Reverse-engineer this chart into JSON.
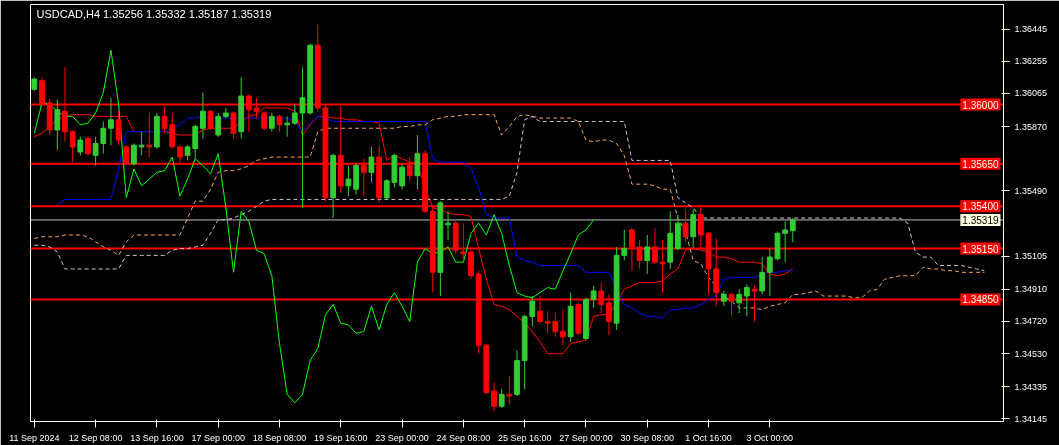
{
  "chart_data": {
    "type": "candlestick",
    "title": "USDCAD,H4  1.35256 1.35332 1.35187 1.35319",
    "categories": [
      "11 Sep 2024",
      null,
      null,
      null,
      null,
      null,
      null,
      null,
      "12 Sep 08:00",
      null,
      null,
      null,
      null,
      null,
      null,
      null,
      "13 Sep 16:00",
      null,
      null,
      null,
      null,
      null,
      null,
      null,
      "17 Sep 00:00",
      null,
      null,
      null,
      null,
      null,
      null,
      null,
      "18 Sep 08:00",
      null,
      null,
      null,
      null,
      null,
      null,
      null,
      "19 Sep 16:00",
      null,
      null,
      null,
      null,
      null,
      null,
      null,
      "23 Sep 00:00",
      null,
      null,
      null,
      null,
      null,
      null,
      null,
      "24 Sep 08:00",
      null,
      null,
      null,
      null,
      null,
      null,
      null,
      "25 Sep 16:00",
      null,
      null,
      null,
      null,
      null,
      null,
      null,
      "27 Sep 00:00",
      null,
      null,
      null,
      null,
      null,
      null,
      null,
      "30 Sep 08:00",
      null,
      null,
      null,
      null,
      null,
      null,
      null,
      "1 Oct 16:00",
      null,
      null,
      null,
      null,
      null,
      null,
      null,
      "3 Oct 00:00",
      null,
      null,
      null,
      null,
      null,
      null,
      null,
      null,
      null,
      null,
      null,
      null,
      null,
      null,
      null,
      null,
      null,
      null,
      null,
      null,
      null,
      null,
      null,
      null,
      null,
      null,
      null,
      null,
      null,
      null
    ],
    "ohlc": [
      [
        1.3609,
        1.3616,
        1.3608,
        1.3615
      ],
      [
        1.3614,
        1.3616,
        1.36,
        1.36
      ],
      [
        1.3601,
        1.3603,
        1.3582,
        1.3585
      ],
      [
        1.3585,
        1.3603,
        1.3573,
        1.3597
      ],
      [
        1.3596,
        1.3622,
        1.3578,
        1.3584
      ],
      [
        1.3584,
        1.3585,
        1.3566,
        1.3575
      ],
      [
        1.3572,
        1.3581,
        1.357,
        1.3579
      ],
      [
        1.358,
        1.3581,
        1.357,
        1.3571
      ],
      [
        1.357,
        1.3581,
        1.3564,
        1.3577
      ],
      [
        1.3577,
        1.359,
        1.3571,
        1.3586
      ],
      [
        1.3586,
        1.3604,
        1.3576,
        1.3591
      ],
      [
        1.3591,
        1.3596,
        1.3576,
        1.3579
      ],
      [
        1.3575,
        1.3576,
        1.3565,
        1.3565
      ],
      [
        1.3565,
        1.3577,
        1.3564,
        1.3576
      ],
      [
        1.3575,
        1.3584,
        1.357,
        1.3576
      ],
      [
        1.3576,
        1.3595,
        1.3569,
        1.3575
      ],
      [
        1.3575,
        1.3595,
        1.3574,
        1.3593
      ],
      [
        1.3593,
        1.3599,
        1.3583,
        1.3586
      ],
      [
        1.3588,
        1.3595,
        1.3574,
        1.3575
      ],
      [
        1.3575,
        1.3576,
        1.3566,
        1.3569
      ],
      [
        1.357,
        1.3576,
        1.3567,
        1.3575
      ],
      [
        1.3574,
        1.3588,
        1.3568,
        1.3587
      ],
      [
        1.3586,
        1.3607,
        1.358,
        1.3596
      ],
      [
        1.3596,
        1.3597,
        1.3585,
        1.3586
      ],
      [
        1.3582,
        1.3595,
        1.3581,
        1.3593
      ],
      [
        1.3593,
        1.3598,
        1.3592,
        1.3595
      ],
      [
        1.3595,
        1.3596,
        1.358,
        1.3583
      ],
      [
        1.3584,
        1.3616,
        1.358,
        1.3605
      ],
      [
        1.3605,
        1.3606,
        1.3584,
        1.3597
      ],
      [
        1.3598,
        1.3604,
        1.3592,
        1.3596
      ],
      [
        1.3595,
        1.3596,
        1.3585,
        1.3586
      ],
      [
        1.3586,
        1.3595,
        1.3584,
        1.3593
      ],
      [
        1.3593,
        1.3594,
        1.3584,
        1.3588
      ],
      [
        1.3588,
        1.3593,
        1.3581,
        1.3589
      ],
      [
        1.3589,
        1.36,
        1.3588,
        1.3595
      ],
      [
        1.3595,
        1.3622,
        1.3539,
        1.3604
      ],
      [
        1.3595,
        1.3636,
        1.3594,
        1.3635
      ],
      [
        1.3635,
        1.3647,
        1.3596,
        1.3598
      ],
      [
        1.3598,
        1.36,
        1.3543,
        1.3545
      ],
      [
        1.3545,
        1.3571,
        1.3533,
        1.357
      ],
      [
        1.357,
        1.3599,
        1.3548,
        1.3552
      ],
      [
        1.3552,
        1.3564,
        1.3546,
        1.3556
      ],
      [
        1.355,
        1.3565,
        1.3547,
        1.3564
      ],
      [
        1.3564,
        1.3568,
        1.3546,
        1.356
      ],
      [
        1.356,
        1.3575,
        1.3554,
        1.3569
      ],
      [
        1.3569,
        1.3576,
        1.3542,
        1.3545
      ],
      [
        1.3545,
        1.3556,
        1.3544,
        1.3555
      ],
      [
        1.3554,
        1.3571,
        1.3551,
        1.357
      ],
      [
        1.3552,
        1.3565,
        1.355,
        1.3563
      ],
      [
        1.3564,
        1.3569,
        1.3555,
        1.3558
      ],
      [
        1.3558,
        1.3582,
        1.355,
        1.3571
      ],
      [
        1.3571,
        1.3573,
        1.3536,
        1.3537
      ],
      [
        1.3537,
        1.3541,
        1.3489,
        1.3501
      ],
      [
        1.3501,
        1.3543,
        1.3487,
        1.3542
      ],
      [
        1.3529,
        1.3537,
        1.352,
        1.353
      ],
      [
        1.353,
        1.3531,
        1.3512,
        1.3514
      ],
      [
        1.3513,
        1.353,
        1.3508,
        1.3512
      ],
      [
        1.3513,
        1.3514,
        1.3497,
        1.3499
      ],
      [
        1.35,
        1.3502,
        1.3453,
        1.3458
      ],
      [
        1.3458,
        1.3459,
        1.3429,
        1.343
      ],
      [
        1.3431,
        1.3436,
        1.3419,
        1.3422
      ],
      [
        1.3422,
        1.3432,
        1.3421,
        1.3429
      ],
      [
        1.3429,
        1.344,
        1.3423,
        1.3428
      ],
      [
        1.3429,
        1.3455,
        1.3428,
        1.3449
      ],
      [
        1.3449,
        1.3476,
        1.3432,
        1.3475
      ],
      [
        1.3475,
        1.3487,
        1.3469,
        1.3484
      ],
      [
        1.3478,
        1.3487,
        1.3471,
        1.3472
      ],
      [
        1.3472,
        1.3478,
        1.3465,
        1.3471
      ],
      [
        1.3472,
        1.3477,
        1.3463,
        1.3466
      ],
      [
        1.3466,
        1.3479,
        1.3458,
        1.3463
      ],
      [
        1.3463,
        1.3489,
        1.346,
        1.3481
      ],
      [
        1.3482,
        1.3483,
        1.3464,
        1.3465
      ],
      [
        1.3462,
        1.3486,
        1.3461,
        1.3485
      ],
      [
        1.3485,
        1.3493,
        1.348,
        1.349
      ],
      [
        1.349,
        1.3495,
        1.3477,
        1.3482
      ],
      [
        1.3483,
        1.3488,
        1.3464,
        1.3472
      ],
      [
        1.3471,
        1.3516,
        1.3467,
        1.3511
      ],
      [
        1.3511,
        1.3526,
        1.3508,
        1.3515
      ],
      [
        1.3526,
        1.3527,
        1.3502,
        1.3516
      ],
      [
        1.3516,
        1.352,
        1.3503,
        1.3508
      ],
      [
        1.3508,
        1.3523,
        1.35,
        1.3516
      ],
      [
        1.3516,
        1.3527,
        1.3506,
        1.3507
      ],
      [
        1.3507,
        1.352,
        1.3489,
        1.3506
      ],
      [
        1.3507,
        1.3537,
        1.3503,
        1.3524
      ],
      [
        1.3515,
        1.3535,
        1.3514,
        1.353
      ],
      [
        1.353,
        1.3538,
        1.3519,
        1.3522
      ],
      [
        1.3522,
        1.3538,
        1.3515,
        1.3535
      ],
      [
        1.3535,
        1.354,
        1.3516,
        1.3523
      ],
      [
        1.3524,
        1.3525,
        1.3488,
        1.3503
      ],
      [
        1.3503,
        1.3521,
        1.3481,
        1.3489
      ],
      [
        1.3484,
        1.349,
        1.3481,
        1.3488
      ],
      [
        1.3488,
        1.3489,
        1.3476,
        1.3484
      ],
      [
        1.3483,
        1.3491,
        1.3477,
        1.3488
      ],
      [
        1.3487,
        1.3494,
        1.3475,
        1.3492
      ],
      [
        1.3491,
        1.3493,
        1.3472,
        1.349
      ],
      [
        1.349,
        1.351,
        1.3488,
        1.3501
      ],
      [
        1.3501,
        1.3515,
        1.3487,
        1.351
      ],
      [
        1.3509,
        1.3525,
        1.3508,
        1.3524
      ],
      [
        1.3524,
        1.3531,
        1.3507,
        1.3526
      ],
      [
        1.35256,
        1.35332,
        1.35187,
        1.35319
      ],
      null,
      null,
      null,
      null,
      null,
      null,
      null,
      null,
      null,
      null,
      null,
      null,
      null,
      null,
      null,
      null,
      null,
      null,
      null,
      null,
      null,
      null,
      null,
      null,
      null,
      null,
      null
    ],
    "colors": [
      "#32cd32",
      "#ff0000",
      "#ff0000",
      "#32cd32",
      "#ff0000",
      "#ff0000",
      "#32cd32",
      "#ff0000",
      "#32cd32",
      "#32cd32",
      "#32cd32",
      "#ff0000",
      "#ff0000",
      "#32cd32",
      "#32cd32",
      "#ff0000",
      "#32cd32",
      "#ff0000",
      "#ff0000",
      "#ff0000",
      "#32cd32",
      "#32cd32",
      "#32cd32",
      "#ff0000",
      "#32cd32",
      "#32cd32",
      "#ff0000",
      "#32cd32",
      "#ff0000",
      "#ff0000",
      "#ff0000",
      "#32cd32",
      "#ff0000",
      "#32cd32",
      "#32cd32",
      "#32cd32",
      "#32cd32",
      "#ff0000",
      "#ff0000",
      "#32cd32",
      "#ff0000",
      "#32cd32",
      "#32cd32",
      "#ff0000",
      "#32cd32",
      "#ff0000",
      "#32cd32",
      "#32cd32",
      "#32cd32",
      "#ff0000",
      "#32cd32",
      "#ff0000",
      "#ff0000",
      "#32cd32",
      "#32cd32",
      "#ff0000",
      "#ff0000",
      "#ff0000",
      "#ff0000",
      "#ff0000",
      "#ff0000",
      "#32cd32",
      "#ff0000",
      "#32cd32",
      "#32cd32",
      "#32cd32",
      "#ff0000",
      "#ff0000",
      "#ff0000",
      "#ff0000",
      "#32cd32",
      "#ff0000",
      "#32cd32",
      "#32cd32",
      "#ff0000",
      "#ff0000",
      "#32cd32",
      "#32cd32",
      "#ff0000",
      "#ff0000",
      "#32cd32",
      "#ff0000",
      "#ff0000",
      "#32cd32",
      "#32cd32",
      "#ff0000",
      "#32cd32",
      "#ff0000",
      "#ff0000",
      "#ff0000",
      "#32cd32",
      "#ff0000",
      "#32cd32",
      "#32cd32",
      "#ff0000",
      "#32cd32",
      "#32cd32",
      "#32cd32",
      "#32cd32",
      "#32cd32",
      null,
      null,
      null,
      null,
      null,
      null,
      null,
      null,
      null,
      null,
      null,
      null,
      null,
      null,
      null,
      null,
      null,
      null,
      null,
      null,
      null,
      null,
      null,
      null,
      null,
      null,
      null
    ],
    "series": [
      {
        "type": "line",
        "color": "#ff0000",
        "line_style": "solid",
        "values": [
          1.3581,
          1.3583,
          1.3587,
          1.3591,
          1.3593,
          1.3594,
          1.3594,
          1.3594,
          1.3593,
          1.3593,
          1.3593,
          1.3593,
          1.3593,
          1.3584,
          null,
          1.3584,
          null,
          1.3584,
          1.3583,
          1.3582,
          1.3582,
          1.3582,
          1.3585,
          1.3586,
          1.3586,
          1.3586,
          1.3586,
          1.359,
          1.3593,
          1.3594,
          1.3598,
          1.3598,
          1.3598,
          1.3598,
          1.3596,
          1.3582,
          1.3588,
          1.3593,
          1.3593,
          1.3592,
          1.3592,
          1.3591,
          1.3591,
          1.359,
          1.359,
          1.3589,
          1.3567,
          1.357,
          1.3568,
          1.3566,
          1.3565,
          1.3551,
          1.3539,
          1.3538,
          1.3536,
          1.3535,
          1.3535,
          1.3534,
          1.3515,
          1.3497,
          1.3482,
          1.3481,
          1.3479,
          1.3475,
          1.3471,
          1.3466,
          1.346,
          1.3453,
          1.3453,
          1.3453,
          1.3459,
          1.346,
          1.3461,
          1.3475,
          1.3476,
          1.3476,
          1.3483,
          1.3491,
          1.3493,
          1.3495,
          1.3495,
          1.3495,
          1.3496,
          1.35,
          1.3503,
          1.3514,
          1.3515,
          1.3514,
          1.3513,
          1.351,
          1.351,
          1.3509,
          1.3507,
          1.3507,
          1.3507,
          1.3506,
          1.35,
          1.3499,
          1.35,
          1.3503,
          null,
          null,
          null,
          null,
          null,
          null,
          null,
          null,
          null,
          null,
          null,
          null,
          null,
          null,
          null,
          null,
          null,
          null,
          null,
          null,
          null,
          null,
          null,
          null,
          null,
          null,
          null
        ]
      },
      {
        "type": "line",
        "color": "#0000ff",
        "line_style": "solid",
        "values": [
          null,
          null,
          null,
          1.3541,
          1.3544,
          1.3544,
          1.3544,
          1.3544,
          1.3544,
          1.3544,
          1.3544,
          1.3562,
          1.3584,
          1.3584,
          1.3584,
          1.3584,
          1.3584,
          1.3584,
          1.3586,
          1.3588,
          1.3592,
          1.3592,
          1.3593,
          1.3592,
          1.3592,
          1.3592,
          1.3592,
          1.3592,
          1.3592,
          1.3592,
          1.3592,
          1.3592,
          1.3592,
          1.3592,
          1.359,
          1.3584,
          1.3589,
          1.3593,
          1.3592,
          1.359,
          1.359,
          1.359,
          1.359,
          1.359,
          1.359,
          1.359,
          1.359,
          1.359,
          1.359,
          1.359,
          1.359,
          1.359,
          1.3568,
          1.3566,
          1.3566,
          1.3566,
          1.3566,
          1.3562,
          1.3551,
          1.3535,
          1.3533,
          1.3533,
          1.3533,
          1.351,
          1.3508,
          1.3507,
          1.3505,
          1.3505,
          1.3505,
          1.3505,
          1.3505,
          1.3505,
          1.3501,
          1.3501,
          1.3501,
          1.3501,
          null,
          1.3482,
          1.348,
          1.3477,
          1.3475,
          1.3475,
          1.3474,
          1.3479,
          1.3479,
          1.348,
          1.348,
          1.3482,
          1.3485,
          1.3487,
          1.3497,
          1.3498,
          1.3498,
          1.3498,
          1.3498,
          1.35,
          1.3501,
          1.3501,
          1.3502,
          1.3502,
          null,
          null,
          null,
          null,
          null,
          null,
          null,
          null,
          null,
          null,
          null,
          null,
          null,
          null,
          null,
          null,
          null,
          null,
          null,
          null,
          null,
          null,
          null,
          null,
          null,
          null,
          null
        ]
      },
      {
        "type": "line",
        "color": "#00ff00",
        "line_style": "solid",
        "values": [
          1.3583,
          1.3601,
          1.36,
          1.3596,
          1.3593,
          1.3593,
          1.3588,
          1.3589,
          1.3595,
          1.3607,
          1.3632,
          1.36,
          1.3545,
          1.3562,
          1.3552,
          1.3556,
          1.356,
          1.3561,
          1.3569,
          1.3546,
          1.3556,
          1.3568,
          1.3564,
          1.3559,
          1.3571,
          1.3539,
          1.3501,
          1.3537,
          1.3531,
          1.3514,
          1.3512,
          1.3499,
          1.3459,
          1.3429,
          1.3424,
          1.3429,
          1.3449,
          1.3456,
          1.3476,
          1.3482,
          1.3471,
          1.347,
          1.3465,
          1.3466,
          1.3481,
          1.3467,
          1.3482,
          1.3489,
          1.3481,
          1.3472,
          1.3507,
          1.3515,
          1.3512,
          1.3513,
          1.3516,
          1.3507,
          1.3507,
          1.3524,
          1.353,
          1.3523,
          1.3535,
          1.3524,
          1.3505,
          1.3489,
          1.3487,
          1.3486,
          1.3489,
          1.3492,
          1.3491,
          1.3502,
          1.3512,
          1.3523,
          1.3526,
          1.3532,
          null,
          null,
          null,
          null,
          null,
          null,
          null,
          null,
          null,
          null,
          null,
          null,
          null,
          null,
          null,
          null,
          null,
          null,
          null,
          null,
          null,
          null,
          null,
          null,
          null,
          null,
          null,
          null,
          null,
          null,
          null,
          null,
          null,
          null,
          null,
          null,
          null,
          null,
          null,
          null,
          null,
          null,
          null,
          null,
          null,
          null,
          null,
          null,
          null,
          null,
          null,
          null,
          null
        ]
      },
      {
        "type": "line",
        "color": "#f4a460",
        "line_style": "dashed",
        "values": [
          1.3521,
          1.3522,
          1.3522,
          1.3522,
          1.3523,
          1.3523,
          1.3523,
          1.3522,
          1.3519,
          1.3516,
          1.3514,
          1.3511,
          1.3519,
          1.3523,
          1.3523,
          1.3523,
          1.3523,
          1.3523,
          1.3523,
          1.3523,
          1.3533,
          1.3543,
          1.3543,
          1.355,
          1.356,
          1.3561,
          1.3561,
          1.3562,
          1.3564,
          1.3567,
          1.3568,
          1.3569,
          1.3569,
          1.3569,
          1.3569,
          1.3569,
          1.3569,
          1.3584,
          1.3586,
          1.3586,
          1.3586,
          1.3586,
          1.3586,
          1.3586,
          1.3586,
          1.3586,
          1.3586,
          1.3586,
          1.3587,
          1.3587,
          1.3588,
          1.3588,
          1.3591,
          1.3592,
          1.3593,
          1.3593,
          1.3594,
          1.3594,
          1.3594,
          1.3594,
          1.3594,
          1.3582,
          1.3587,
          1.3593,
          1.3594,
          1.3593,
          1.3592,
          1.3592,
          1.3592,
          1.3592,
          1.3592,
          1.359,
          1.3579,
          1.3578,
          1.3579,
          1.3579,
          1.3577,
          1.357,
          1.3553,
          1.3553,
          1.3553,
          1.3552,
          1.355,
          1.355,
          1.3533,
          1.3525,
          1.3508,
          1.3506,
          1.3498,
          null,
          1.3487,
          1.3484,
          1.348,
          1.348,
          1.348,
          1.3479,
          1.3481,
          1.3482,
          1.3483,
          1.3488,
          1.3488,
          1.3489,
          1.349,
          1.3487,
          1.3487,
          1.3487,
          1.3487,
          1.3486,
          1.3486,
          1.349,
          1.3491,
          1.3497,
          1.3498,
          1.3499,
          1.3499,
          1.3499,
          1.3504,
          1.3503,
          1.3503,
          1.3502,
          1.3502,
          1.3501,
          1.3501,
          1.3501,
          1.3501,
          null,
          null
        ]
      },
      {
        "type": "line",
        "color": "#d8bfd8",
        "line_style": "dashed",
        "values": [
          1.3517,
          1.3517,
          1.3516,
          1.3513,
          1.3503,
          1.3503,
          1.3503,
          1.3503,
          1.3503,
          1.3503,
          1.3503,
          1.3503,
          1.3511,
          1.3511,
          1.3511,
          1.3511,
          1.3511,
          1.3511,
          1.3514,
          1.3515,
          1.3515,
          1.3516,
          1.3517,
          1.3524,
          1.3532,
          1.3532,
          1.3533,
          1.3535,
          1.3537,
          1.354,
          1.3543,
          1.3544,
          1.3544,
          1.3544,
          1.3544,
          1.3544,
          1.3544,
          1.3544,
          1.3544,
          1.3544,
          1.3544,
          1.3544,
          1.3544,
          1.3544,
          1.3544,
          1.3544,
          1.3544,
          1.3544,
          1.3544,
          1.3544,
          1.3544,
          1.3544,
          1.3544,
          1.3544,
          1.3544,
          1.3544,
          1.3544,
          1.3544,
          1.3544,
          1.3544,
          1.3544,
          1.3544,
          1.3546,
          1.356,
          1.3591,
          1.3593,
          1.359,
          1.359,
          1.359,
          1.359,
          1.359,
          1.359,
          1.359,
          1.359,
          1.359,
          1.359,
          1.359,
          1.359,
          1.3567,
          1.3567,
          1.3567,
          1.3567,
          1.3567,
          1.3567,
          1.3545,
          1.3542,
          1.3539,
          1.3533,
          1.3533,
          1.3533,
          1.3533,
          1.3533,
          1.3533,
          1.3533,
          1.3533,
          1.3533,
          1.3533,
          1.3533,
          1.3533,
          1.3533,
          1.3533,
          1.3533,
          1.3533,
          1.3533,
          1.3533,
          1.3533,
          1.3533,
          1.3533,
          1.3533,
          1.3533,
          1.3533,
          1.3533,
          1.3533,
          1.3533,
          1.353,
          1.3513,
          1.351,
          1.351,
          1.3505,
          1.3505,
          1.3505,
          1.3505,
          1.3504,
          1.3503,
          1.3502,
          null,
          null
        ]
      }
    ],
    "ylim": [
      1.3413,
      1.3659
    ],
    "yticks": [
      1.34145,
      1.34335,
      {
        "value": 1.3453,
        "label": "1.34530"
      },
      {
        "value": 1.3472,
        "label": "1.34720"
      },
      {
        "value": 1.3491,
        "label": "1.34910"
      },
      1.35105,
      {
        "value": 1.3549,
        "label": "1.35490"
      },
      {
        "value": 1.3587,
        "label": "1.35870"
      },
      1.36065,
      1.36255,
      1.36445
    ],
    "ref_lines": [
      {
        "axis": "y",
        "value": 1.36,
        "label": "1.36000",
        "color": "#ff0000"
      },
      {
        "axis": "y",
        "value": 1.3565,
        "label": "1.35650",
        "color": "#ff0000"
      },
      {
        "axis": "y",
        "value": 1.354,
        "label": "1.35400",
        "color": "#ff0000"
      },
      {
        "axis": "y",
        "value": 1.3515,
        "label": "1.35150",
        "color": "#ff0000"
      },
      {
        "axis": "y",
        "value": 1.3485,
        "label": "1.34850",
        "color": "#ff0000"
      },
      {
        "axis": "y",
        "value": 1.35319,
        "label": "1.35319",
        "color": "#c0c0c0"
      }
    ]
  }
}
